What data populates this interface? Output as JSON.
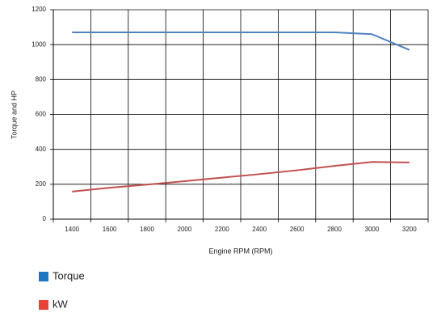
{
  "chart_data": {
    "type": "line",
    "x_label": "Engine RPM (RPM)",
    "y_label": "Torque and HP",
    "categories": [
      "1400",
      "1600",
      "1800",
      "2000",
      "2200",
      "2400",
      "2600",
      "2800",
      "3000",
      "3200"
    ],
    "series": [
      {
        "name": "Torque",
        "color": "#4f81bd",
        "legend_color": "#1f77c4",
        "values": [
          1070,
          1070,
          1070,
          1070,
          1070,
          1070,
          1070,
          1070,
          1060,
          970
        ]
      },
      {
        "name": "kW",
        "color": "#c0504d",
        "legend_color": "#e8413a",
        "values": [
          158,
          180,
          198,
          218,
          238,
          258,
          280,
          305,
          328,
          325
        ]
      }
    ],
    "ylim": [
      0,
      1200
    ],
    "yticks": [
      0,
      200,
      400,
      600,
      800,
      1000,
      1200
    ],
    "grid": true
  }
}
